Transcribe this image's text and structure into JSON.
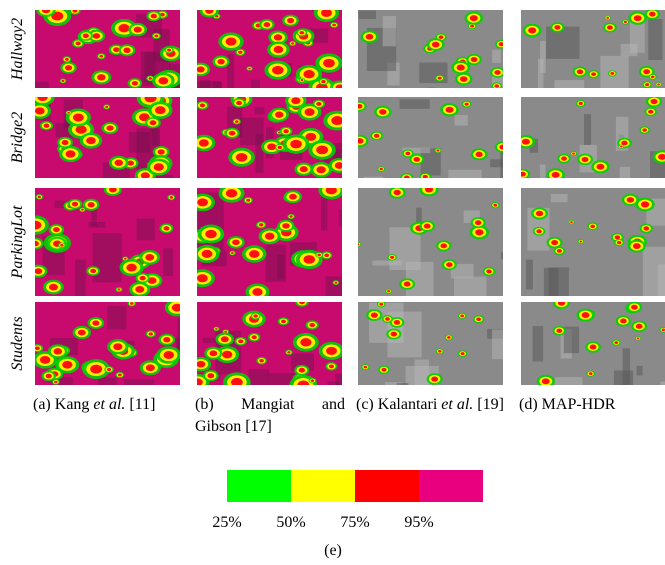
{
  "rows": [
    "Hallway2",
    "Bridge2",
    "ParkingLot",
    "Students"
  ],
  "captions": [
    [
      {
        "text": "(a) Kang "
      },
      {
        "text": "et al.",
        "italic": true
      },
      {
        "text": " [11]"
      }
    ],
    [
      {
        "text": "(b) Mangiat and Gibson [17]"
      }
    ],
    [
      {
        "text": "(c) Kalantari "
      },
      {
        "text": "et al.",
        "italic": true
      },
      {
        "text": " [19]"
      }
    ],
    [
      {
        "text": "(d) MAP-HDR"
      }
    ]
  ],
  "legend": {
    "segments": [
      {
        "color": "#00ff00",
        "label": "25%"
      },
      {
        "color": "#ffff00",
        "label": "50%"
      },
      {
        "color": "#ff0000",
        "label": "75%"
      },
      {
        "color": "#e8007e",
        "label": "95%"
      }
    ],
    "caption": "(e)"
  }
}
